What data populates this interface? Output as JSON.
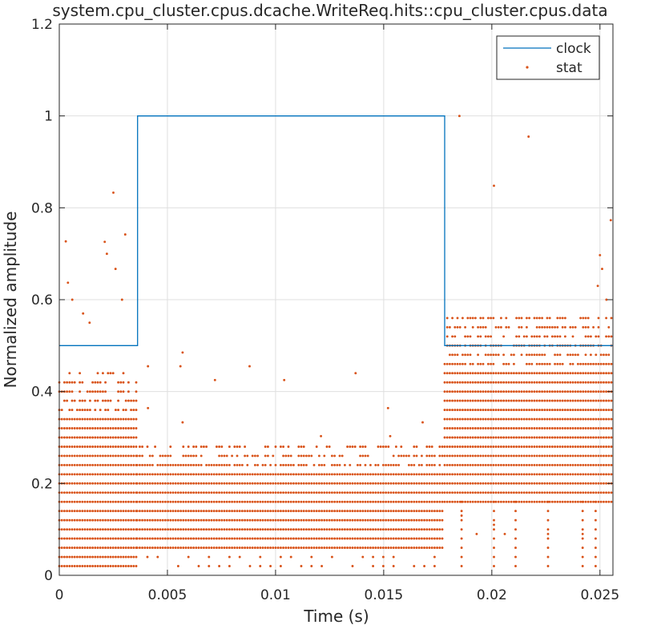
{
  "chart_data": {
    "type": "line",
    "title": "system.cpu_cluster.cpus.dcache.WriteReq.hits::cpu_cluster.cpus.data",
    "xlabel": "Time (s)",
    "ylabel": "Normalized amplitude",
    "xlim": [
      0,
      0.0256
    ],
    "ylim": [
      0,
      1.2
    ],
    "xticks": [
      0,
      0.005,
      0.01,
      0.015,
      0.02,
      0.025
    ],
    "xtick_labels": [
      "0",
      "0.005",
      "0.01",
      "0.015",
      "0.02",
      "0.025"
    ],
    "yticks": [
      0,
      0.2,
      0.4,
      0.6,
      0.8,
      1.0,
      1.2
    ],
    "ytick_labels": [
      "0",
      "0.2",
      "0.4",
      "0.6",
      "0.8",
      "1",
      "1.2"
    ],
    "grid": true,
    "legend_position": "top-right",
    "series": [
      {
        "name": "clock",
        "kind": "line",
        "color": "#0072BD",
        "x": [
          0,
          0.00362,
          0.00362,
          0.01782,
          0.01782,
          0.0256
        ],
        "y": [
          0.5,
          0.5,
          1.0,
          1.0,
          0.5,
          0.5
        ]
      },
      {
        "name": "stat",
        "kind": "scatter",
        "color": "#D95319",
        "segments": [
          {
            "x_start": 0.0,
            "x_end": 0.0036,
            "levels_from": 0.02,
            "levels_to": 0.45,
            "level_step": 0.02
          },
          {
            "x_start": 0.0036,
            "x_end": 0.01782,
            "levels_from": 0.06,
            "levels_to": 0.28,
            "level_step": 0.02
          },
          {
            "x_start": 0.01782,
            "x_end": 0.0256,
            "levels_from": 0.16,
            "levels_to": 0.56,
            "level_step": 0.02
          }
        ],
        "low_rows": [
          0.02,
          0.04
        ],
        "isolated_points": [
          {
            "x": 0.0003,
            "y": 0.727
          },
          {
            "x": 0.0004,
            "y": 0.637
          },
          {
            "x": 0.0006,
            "y": 0.6
          },
          {
            "x": 0.0011,
            "y": 0.57
          },
          {
            "x": 0.0014,
            "y": 0.55
          },
          {
            "x": 0.0021,
            "y": 0.726
          },
          {
            "x": 0.0022,
            "y": 0.7
          },
          {
            "x": 0.0025,
            "y": 0.833
          },
          {
            "x": 0.0026,
            "y": 0.667
          },
          {
            "x": 0.0029,
            "y": 0.6
          },
          {
            "x": 0.00305,
            "y": 0.742
          },
          {
            "x": 0.0041,
            "y": 0.455
          },
          {
            "x": 0.0041,
            "y": 0.364
          },
          {
            "x": 0.0057,
            "y": 0.485
          },
          {
            "x": 0.0056,
            "y": 0.455
          },
          {
            "x": 0.0057,
            "y": 0.333
          },
          {
            "x": 0.0072,
            "y": 0.425
          },
          {
            "x": 0.0088,
            "y": 0.455
          },
          {
            "x": 0.0104,
            "y": 0.425
          },
          {
            "x": 0.0121,
            "y": 0.303
          },
          {
            "x": 0.0137,
            "y": 0.44
          },
          {
            "x": 0.0152,
            "y": 0.364
          },
          {
            "x": 0.0153,
            "y": 0.303
          },
          {
            "x": 0.0168,
            "y": 0.333
          },
          {
            "x": 0.0185,
            "y": 1.0
          },
          {
            "x": 0.0201,
            "y": 0.848
          },
          {
            "x": 0.0217,
            "y": 0.955
          },
          {
            "x": 0.0255,
            "y": 0.773
          },
          {
            "x": 0.025,
            "y": 0.697
          },
          {
            "x": 0.0251,
            "y": 0.667
          },
          {
            "x": 0.0249,
            "y": 0.63
          },
          {
            "x": 0.0253,
            "y": 0.6
          },
          {
            "x": 0.0193,
            "y": 0.09
          },
          {
            "x": 0.0206,
            "y": 0.09
          },
          {
            "x": 0.0242,
            "y": 0.09
          },
          {
            "x": 0.0226,
            "y": 0.09
          },
          {
            "x": 0.0186,
            "y": 0.13
          },
          {
            "x": 0.0201,
            "y": 0.11
          }
        ]
      }
    ]
  }
}
